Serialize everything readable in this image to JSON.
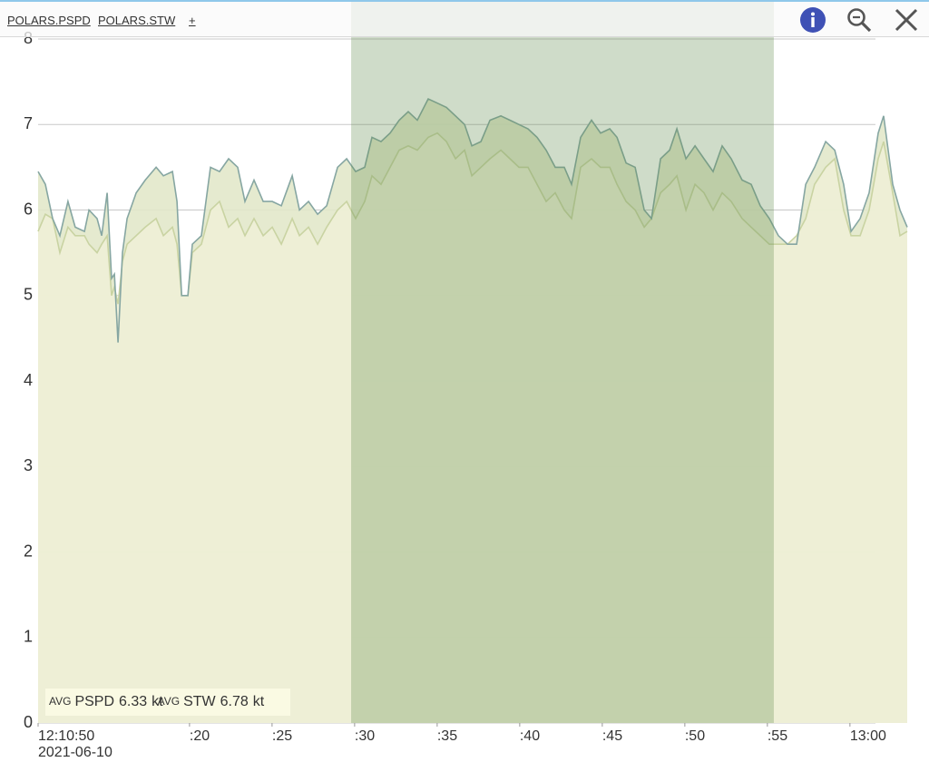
{
  "toolbar": {
    "tabs": [
      "POLARS.PSPD",
      "POLARS.STW",
      "+"
    ]
  },
  "chart_data": {
    "type": "area",
    "x": [
      10.83,
      11.27,
      11.71,
      12.15,
      12.64,
      13.08,
      13.64,
      13.91,
      14.4,
      14.68,
      15.01,
      15.28,
      15.45,
      15.67,
      15.94,
      16.22,
      16.77,
      17.32,
      17.98,
      18.42,
      18.97,
      19.24,
      19.52,
      19.9,
      20.17,
      20.72,
      21.27,
      21.82,
      22.37,
      22.92,
      23.36,
      23.91,
      24.46,
      25.01,
      25.56,
      26.22,
      26.66,
      27.21,
      27.76,
      28.31,
      28.97,
      29.52,
      30.06,
      30.61,
      31.05,
      31.6,
      32.15,
      32.7,
      33.25,
      33.8,
      34.46,
      35.01,
      35.56,
      36.11,
      36.66,
      37.1,
      37.65,
      38.2,
      38.86,
      39.41,
      39.96,
      40.5,
      41.05,
      41.6,
      42.15,
      42.7,
      43.14,
      43.69,
      44.35,
      44.9,
      45.45,
      45.89,
      46.44,
      46.99,
      47.54,
      47.98,
      48.53,
      49.08,
      49.52,
      50.07,
      50.62,
      51.16,
      51.71,
      52.26,
      52.81,
      53.47,
      54.02,
      54.57,
      55.12,
      55.67,
      56.22,
      56.77,
      57.32,
      57.86,
      58.53,
      59.08,
      59.62,
      60.07,
      60.62,
      61.16,
      61.71,
      62.04,
      62.59,
      63.03,
      63.47
    ],
    "xlim": [
      10.83,
      63.47
    ],
    "xticks": [
      {
        "value": 10.83,
        "label": "12:10:50"
      },
      {
        "value": 20,
        "label": ":20"
      },
      {
        "value": 25,
        "label": ":25"
      },
      {
        "value": 30,
        "label": ":30"
      },
      {
        "value": 35,
        "label": ":35"
      },
      {
        "value": 40,
        "label": ":40"
      },
      {
        "value": 45,
        "label": ":45"
      },
      {
        "value": 50,
        "label": ":50"
      },
      {
        "value": 55,
        "label": ":55"
      },
      {
        "value": 60,
        "label": "13:00"
      }
    ],
    "x_date_label": "2021-06-10",
    "ylim": [
      0,
      8
    ],
    "yticks": [
      0,
      1,
      2,
      3,
      4,
      5,
      6,
      7,
      8
    ],
    "grid": true,
    "selection": [
      29.79,
      55.39
    ],
    "legend_prefix": "AVG",
    "unit": "kt",
    "series": [
      {
        "name": "PSPD",
        "color": "#c9d3a2",
        "fill": "#eef0d6",
        "avg": 6.33,
        "values": [
          5.75,
          5.95,
          5.9,
          5.5,
          5.8,
          5.7,
          5.7,
          5.6,
          5.5,
          5.6,
          5.7,
          5.0,
          5.1,
          4.9,
          5.4,
          5.6,
          5.7,
          5.8,
          5.9,
          5.7,
          5.8,
          5.6,
          5.0,
          5.0,
          5.5,
          5.6,
          6.0,
          6.1,
          5.8,
          5.9,
          5.7,
          5.9,
          5.7,
          5.8,
          5.6,
          5.9,
          5.7,
          5.8,
          5.6,
          5.8,
          6.0,
          6.1,
          5.9,
          6.1,
          6.4,
          6.3,
          6.5,
          6.7,
          6.75,
          6.7,
          6.85,
          6.9,
          6.8,
          6.6,
          6.7,
          6.4,
          6.5,
          6.6,
          6.7,
          6.6,
          6.5,
          6.5,
          6.3,
          6.1,
          6.2,
          6.0,
          5.9,
          6.5,
          6.6,
          6.5,
          6.5,
          6.3,
          6.1,
          6.0,
          5.8,
          5.9,
          6.2,
          6.3,
          6.4,
          6.0,
          6.3,
          6.2,
          6.0,
          6.2,
          6.1,
          5.9,
          5.8,
          5.7,
          5.6,
          5.6,
          5.6,
          5.7,
          5.9,
          6.3,
          6.5,
          6.6,
          6.0,
          5.7,
          5.7,
          6.0,
          6.6,
          6.8,
          6.2,
          5.7,
          5.75
        ]
      },
      {
        "name": "STW",
        "color": "#86a6a2",
        "fill": "#e2e8ca",
        "avg": 6.78,
        "values": [
          6.45,
          6.3,
          5.9,
          5.7,
          6.1,
          5.8,
          5.75,
          6.0,
          5.9,
          5.7,
          6.2,
          5.2,
          5.25,
          4.45,
          5.5,
          5.9,
          6.2,
          6.35,
          6.5,
          6.4,
          6.45,
          6.1,
          5.0,
          5.0,
          5.6,
          5.7,
          6.5,
          6.45,
          6.6,
          6.5,
          6.1,
          6.35,
          6.1,
          6.1,
          6.05,
          6.4,
          6.0,
          6.1,
          5.95,
          6.05,
          6.5,
          6.6,
          6.45,
          6.5,
          6.85,
          6.8,
          6.9,
          7.05,
          7.15,
          7.05,
          7.3,
          7.25,
          7.2,
          7.1,
          7.0,
          6.75,
          6.8,
          7.05,
          7.1,
          7.05,
          7.0,
          6.95,
          6.85,
          6.7,
          6.5,
          6.5,
          6.3,
          6.85,
          7.05,
          6.9,
          6.95,
          6.85,
          6.55,
          6.5,
          6.0,
          5.9,
          6.6,
          6.7,
          6.95,
          6.6,
          6.75,
          6.6,
          6.45,
          6.75,
          6.6,
          6.35,
          6.3,
          6.05,
          5.9,
          5.7,
          5.6,
          5.6,
          6.3,
          6.5,
          6.8,
          6.7,
          6.3,
          5.75,
          5.9,
          6.2,
          6.9,
          7.1,
          6.3,
          6.0,
          5.8
        ]
      }
    ]
  }
}
